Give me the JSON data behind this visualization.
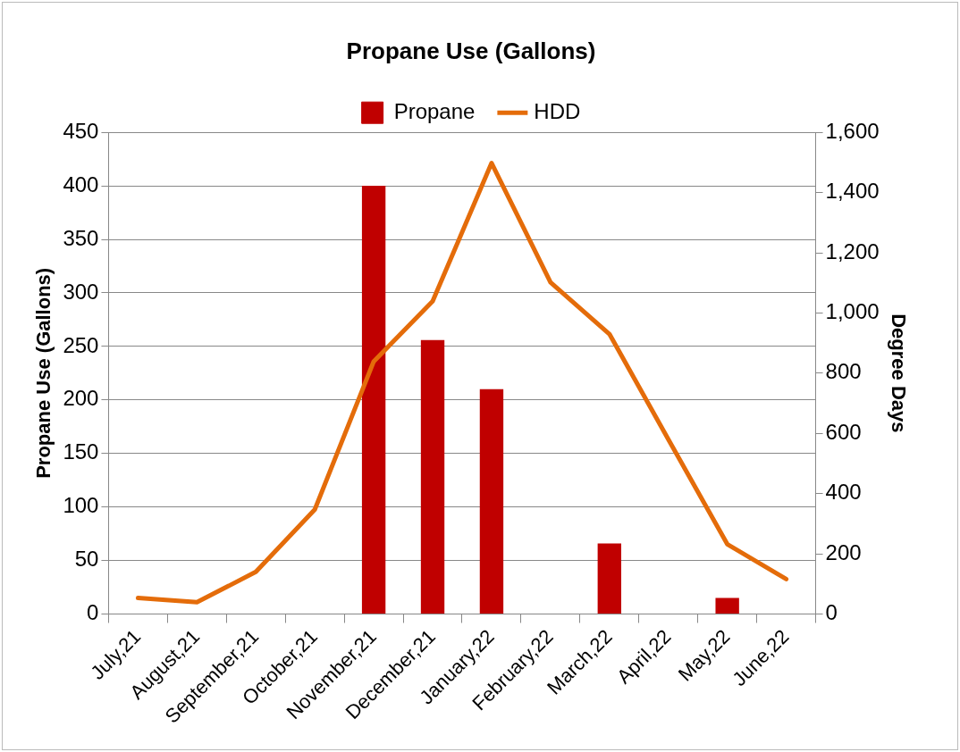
{
  "chart_data": {
    "type": "bar",
    "title": "Propane Use (Gallons)",
    "ylabel": "Propane Use (Gallons)",
    "y2label": "Degree Days",
    "categories": [
      "July,21",
      "August,21",
      "September,21",
      "October,21",
      "November,21",
      "December,21",
      "January,22",
      "February,22",
      "March,22",
      "April,22",
      "May,22",
      "June,22"
    ],
    "series": [
      {
        "name": "Propane",
        "color": "#c00000",
        "values": [
          0,
          0,
          0,
          0,
          400,
          256,
          210,
          0,
          66,
          0,
          15,
          0
        ]
      },
      {
        "name": "HDD",
        "type": "line",
        "axis": "y2",
        "color": "#e46c0a",
        "marker": "none",
        "values": [
          53,
          39,
          140,
          347,
          839,
          1039,
          1498,
          1102,
          930,
          580,
          232,
          116
        ]
      }
    ],
    "ylim": [
      0,
      450
    ],
    "yticks": [
      0,
      50,
      100,
      150,
      200,
      250,
      300,
      350,
      400,
      450
    ],
    "y2lim": [
      0,
      1600
    ],
    "y2ticks": [
      {
        "value": 0,
        "label": "0"
      },
      {
        "value": 200,
        "label": "200"
      },
      {
        "value": 400,
        "label": "400"
      },
      {
        "value": 600,
        "label": "600"
      },
      {
        "value": 800,
        "label": "800"
      },
      {
        "value": 1000,
        "label": "1,000"
      },
      {
        "value": 1200,
        "label": "1,200"
      },
      {
        "value": 1400,
        "label": "1,400"
      },
      {
        "value": 1600,
        "label": "1,600"
      }
    ],
    "grid": "y",
    "legend": "top"
  }
}
